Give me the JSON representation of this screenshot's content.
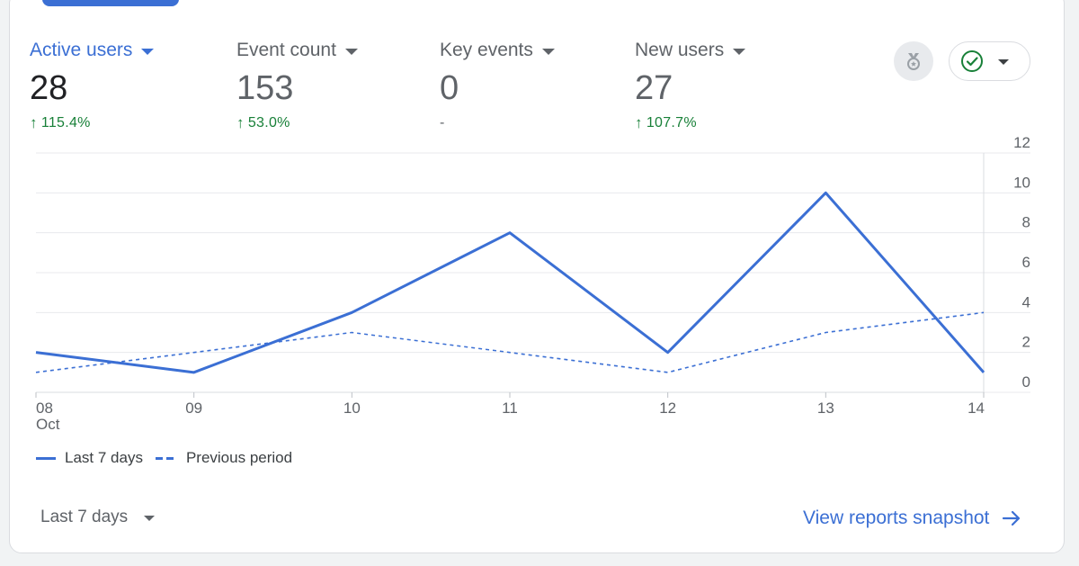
{
  "metrics": [
    {
      "label": "Active users",
      "value": "28",
      "change": "115.4%",
      "trend": "up",
      "active": true
    },
    {
      "label": "Event count",
      "value": "153",
      "change": "53.0%",
      "trend": "up",
      "active": false
    },
    {
      "label": "Key events",
      "value": "0",
      "change": "-",
      "trend": "none",
      "active": false
    },
    {
      "label": "New users",
      "value": "27",
      "change": "107.7%",
      "trend": "up",
      "active": false
    }
  ],
  "icons": {
    "insights": "medal-icon",
    "status": "check-circle-icon",
    "dropdown": "caret-down-icon",
    "link_arrow": "arrow-right-icon"
  },
  "colors": {
    "accent": "#3b6fd4",
    "positive": "#188038",
    "status_check": "#188038"
  },
  "chart_data": {
    "type": "line",
    "categories": [
      "08",
      "09",
      "10",
      "11",
      "12",
      "13",
      "14"
    ],
    "x_sublabel": "Oct",
    "series": [
      {
        "name": "Last 7 days",
        "style": "solid",
        "values": [
          2,
          1,
          4,
          8,
          2,
          10,
          1
        ]
      },
      {
        "name": "Previous period",
        "style": "dashed",
        "values": [
          1,
          2,
          3,
          2,
          1,
          3,
          4
        ]
      }
    ],
    "y_ticks": [
      0,
      2,
      4,
      6,
      8,
      10,
      12
    ],
    "ylim": [
      0,
      12
    ],
    "y_axis_side": "right",
    "grid": true,
    "legend_position": "bottom-left"
  },
  "footer": {
    "period_label": "Last 7 days",
    "view_link": "View reports snapshot"
  }
}
